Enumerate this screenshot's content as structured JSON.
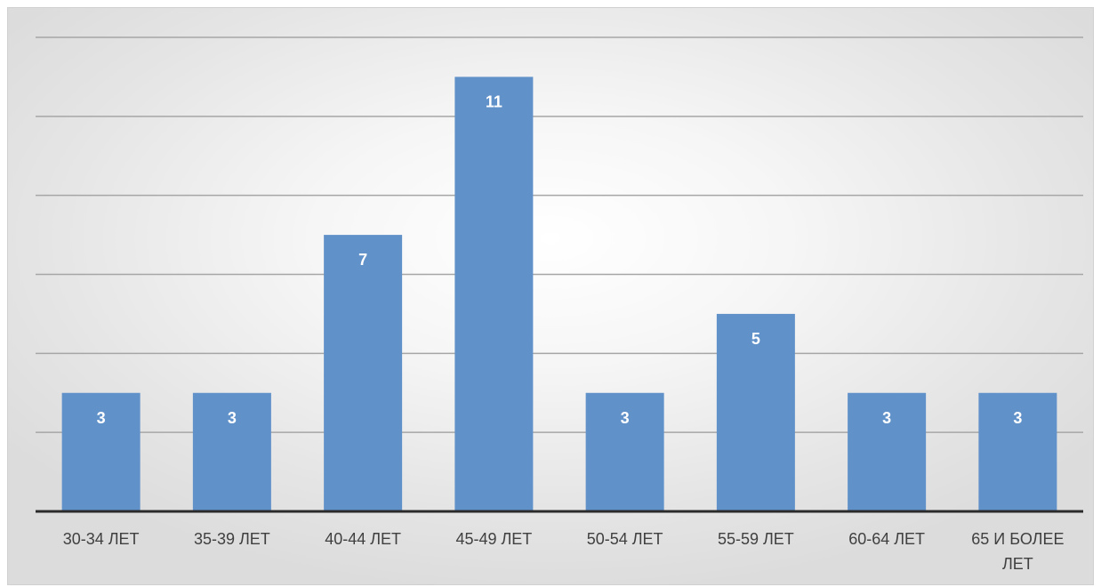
{
  "chart_data": {
    "type": "bar",
    "categories": [
      "30-34 ЛЕТ",
      "35-39 ЛЕТ",
      "40-44 ЛЕТ",
      "45-49 ЛЕТ",
      "50-54 ЛЕТ",
      "55-59 ЛЕТ",
      "60-64 ЛЕТ",
      "65 И БОЛЕЕ ЛЕТ"
    ],
    "values": [
      3,
      3,
      7,
      11,
      3,
      5,
      3,
      3
    ],
    "ylim": [
      0,
      12
    ],
    "grid": true,
    "legend": "none",
    "colors": {
      "bar": "#6191c9",
      "label": "#ffffff"
    }
  }
}
